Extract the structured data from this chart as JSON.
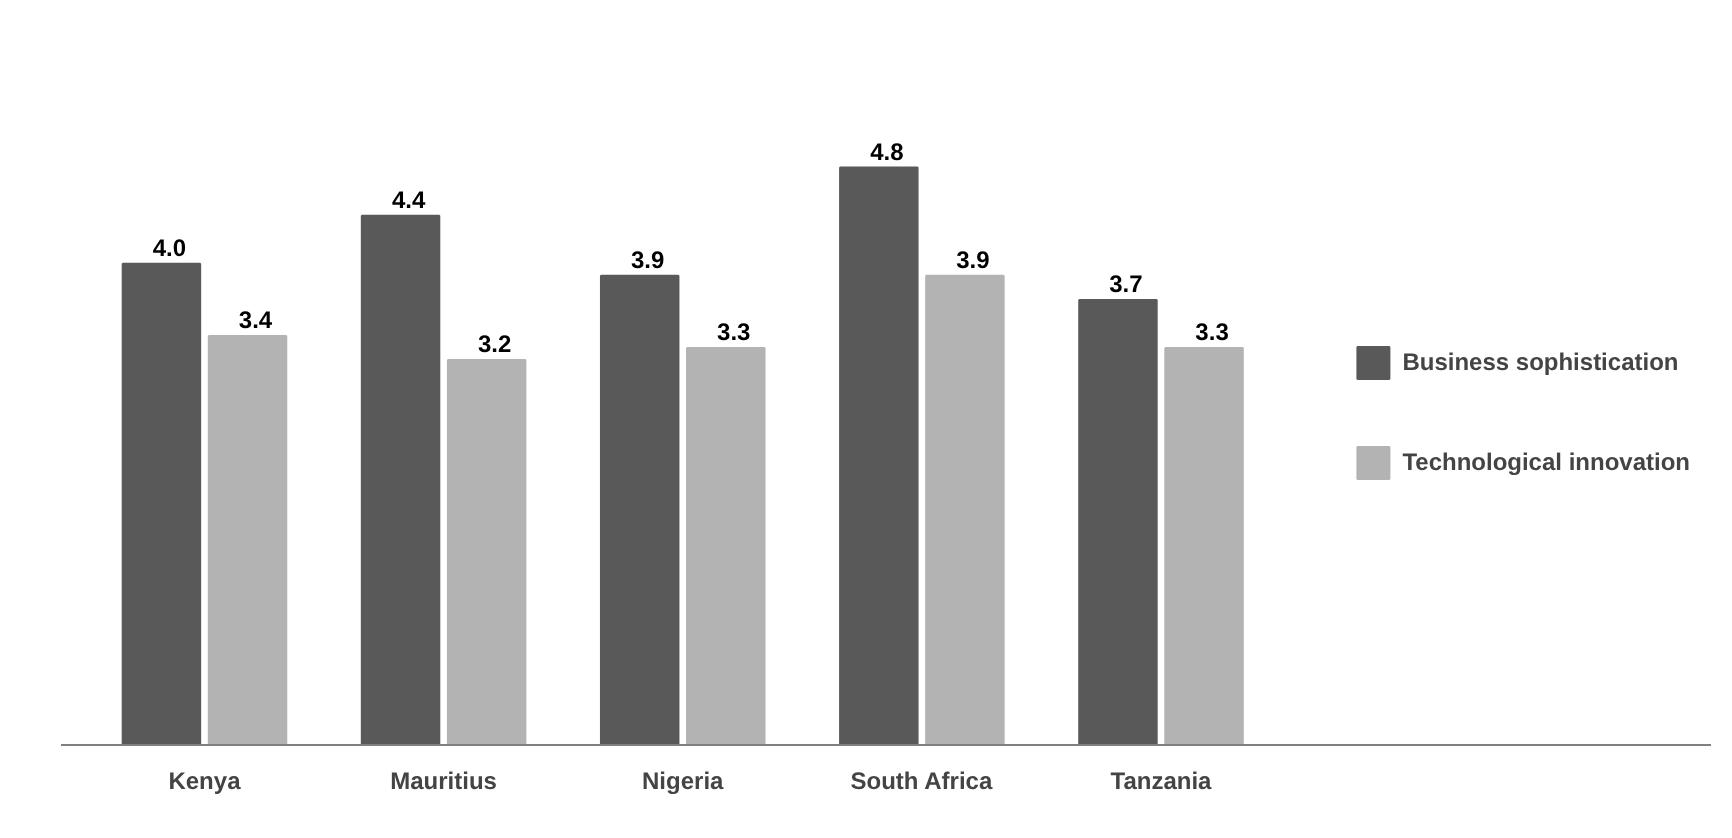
{
  "chart_data": {
    "type": "bar",
    "categories": [
      "Kenya",
      "Mauritius",
      "Nigeria",
      "South Africa",
      "Tanzania"
    ],
    "series": [
      {
        "name": "Business sophistication",
        "color": "#595959",
        "values": [
          4.0,
          4.4,
          3.9,
          4.8,
          3.7
        ],
        "value_labels": [
          "4.0",
          "4.4",
          "3.9",
          "4.8",
          "3.7"
        ]
      },
      {
        "name": "Technological innovation",
        "color": "#b3b3b3",
        "values": [
          3.4,
          3.2,
          3.3,
          3.9,
          3.3
        ],
        "value_labels": [
          "3.4",
          "3.2",
          "3.3",
          "3.9",
          "3.3"
        ]
      }
    ],
    "legend": "right",
    "grid": false
  }
}
